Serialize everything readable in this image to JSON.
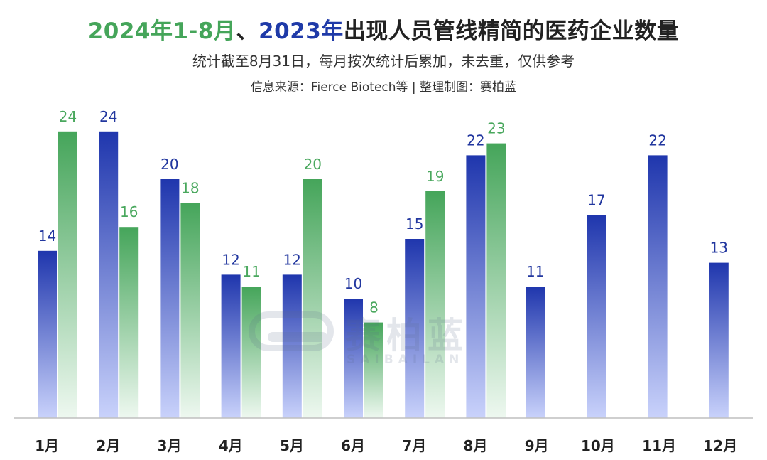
{
  "header": {
    "title_part1": "2024年1-8月",
    "title_sep": "、",
    "title_part2": "2023年",
    "title_part3": "出现人员管线精简的医药企业数量",
    "subtitle": "统计截至8月31日，每月按次统计后累加，未去重，仅供参考",
    "source": "信息来源：Fierce Biotech等 | 整理制图：赛柏蓝"
  },
  "watermark": {
    "text": "赛柏蓝",
    "sub": "SAIBAILAN"
  },
  "colors": {
    "series_2023_top": "#1f36ad",
    "series_2023_bottom": "#c9d2fb",
    "series_2024_top": "#45a55a",
    "series_2024_bottom": "#eef8f0",
    "label_2023": "#22379f",
    "label_2024": "#4aa85e",
    "axis": "#bfbfbf"
  },
  "chart_data": {
    "type": "bar",
    "categories": [
      "1月",
      "2月",
      "3月",
      "4月",
      "5月",
      "6月",
      "7月",
      "8月",
      "9月",
      "10月",
      "11月",
      "12月"
    ],
    "series": [
      {
        "values": [
          14,
          24,
          20,
          12,
          12,
          10,
          15,
          22,
          11,
          17,
          22,
          13
        ]
      },
      {
        "values": [
          24,
          16,
          18,
          11,
          20,
          8,
          19,
          23,
          null,
          null,
          null,
          null
        ]
      }
    ],
    "ylim": [
      0,
      25
    ],
    "grid": false,
    "legend": "none"
  }
}
